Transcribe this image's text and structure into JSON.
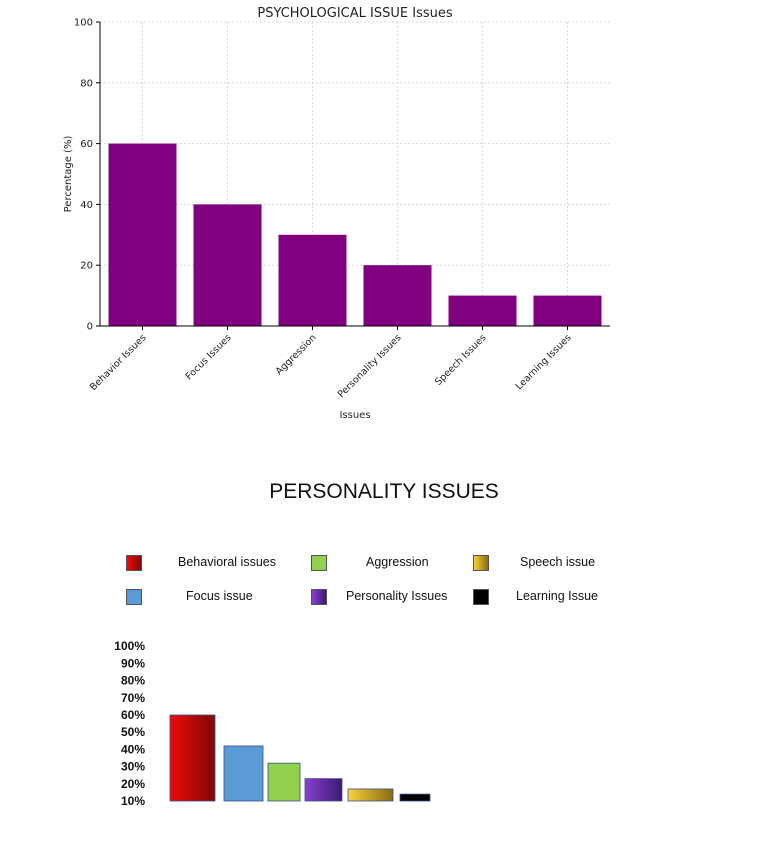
{
  "chart_data": [
    {
      "type": "bar",
      "title": "PSYCHOLOGICAL ISSUE Issues",
      "xlabel": "Issues",
      "ylabel": "Percentage (%)",
      "ylim": [
        0,
        100
      ],
      "yticks": [
        "0",
        "20",
        "40",
        "60",
        "80",
        "100"
      ],
      "grid": true,
      "categories": [
        "Behavior Issues",
        "Focus Issues",
        "Aggression",
        "Personality Issues",
        "Speech Issues",
        "Learning Issues"
      ],
      "values": [
        60,
        40,
        30,
        20,
        10,
        10
      ],
      "color": "#800080"
    },
    {
      "type": "bar",
      "title": "PERSONALITY ISSUES",
      "ylim": [
        0,
        100
      ],
      "yticks": [
        "10%",
        "20%",
        "30%",
        "40%",
        "50%",
        "60%",
        "70%",
        "80%",
        "90%",
        "100%"
      ],
      "legend_placement": "top",
      "legend": [
        {
          "label": "Behavioral issues",
          "colors": [
            "#ee0a0a",
            "#7d0808"
          ]
        },
        {
          "label": "Aggression",
          "colors": [
            "#92d050",
            "#92d050"
          ]
        },
        {
          "label": "Speech issue",
          "colors": [
            "#f8d23b",
            "#8a6c10"
          ]
        },
        {
          "label": "Focus issue",
          "colors": [
            "#5b9bd5",
            "#5b9bd5"
          ]
        },
        {
          "label": "Personality Issues",
          "colors": [
            "#8a3fd1",
            "#3d1a73"
          ]
        },
        {
          "label": "Learning Issue",
          "colors": [
            "#000000",
            "#000000"
          ]
        }
      ],
      "categories": [
        "Behavioral issues",
        "Focus issue",
        "Aggression",
        "Personality Issues",
        "Speech issue",
        "Learning Issue"
      ],
      "values": [
        60,
        42,
        32,
        23,
        17,
        14
      ]
    }
  ]
}
